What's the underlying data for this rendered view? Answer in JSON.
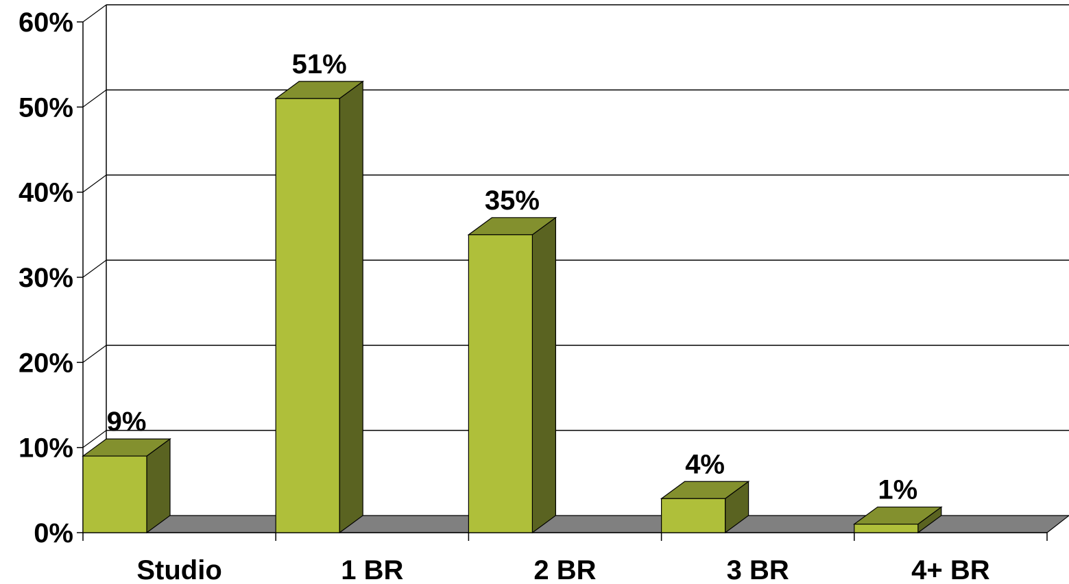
{
  "chart_data": {
    "type": "bar",
    "title": "",
    "xlabel": "",
    "ylabel": "",
    "categories": [
      "Studio",
      "1 BR",
      "2 BR",
      "3 BR",
      "4+ BR"
    ],
    "values": [
      9,
      51,
      35,
      4,
      1
    ],
    "data_labels": [
      "9%",
      "51%",
      "35%",
      "4%",
      "1%"
    ],
    "ylim": [
      0,
      60
    ],
    "y_ticks": [
      0,
      10,
      20,
      30,
      40,
      50,
      60
    ],
    "y_tick_labels": [
      "0%",
      "10%",
      "20%",
      "30%",
      "40%",
      "50%",
      "60%"
    ],
    "grid": true,
    "legend": "none",
    "style": "3d",
    "colors": {
      "bar_front": "#AFBF3A",
      "bar_top": "#83902E",
      "bar_side": "#5A6321",
      "floor": "#808080",
      "grid": "#000000",
      "background": "#FFFFFF"
    }
  }
}
